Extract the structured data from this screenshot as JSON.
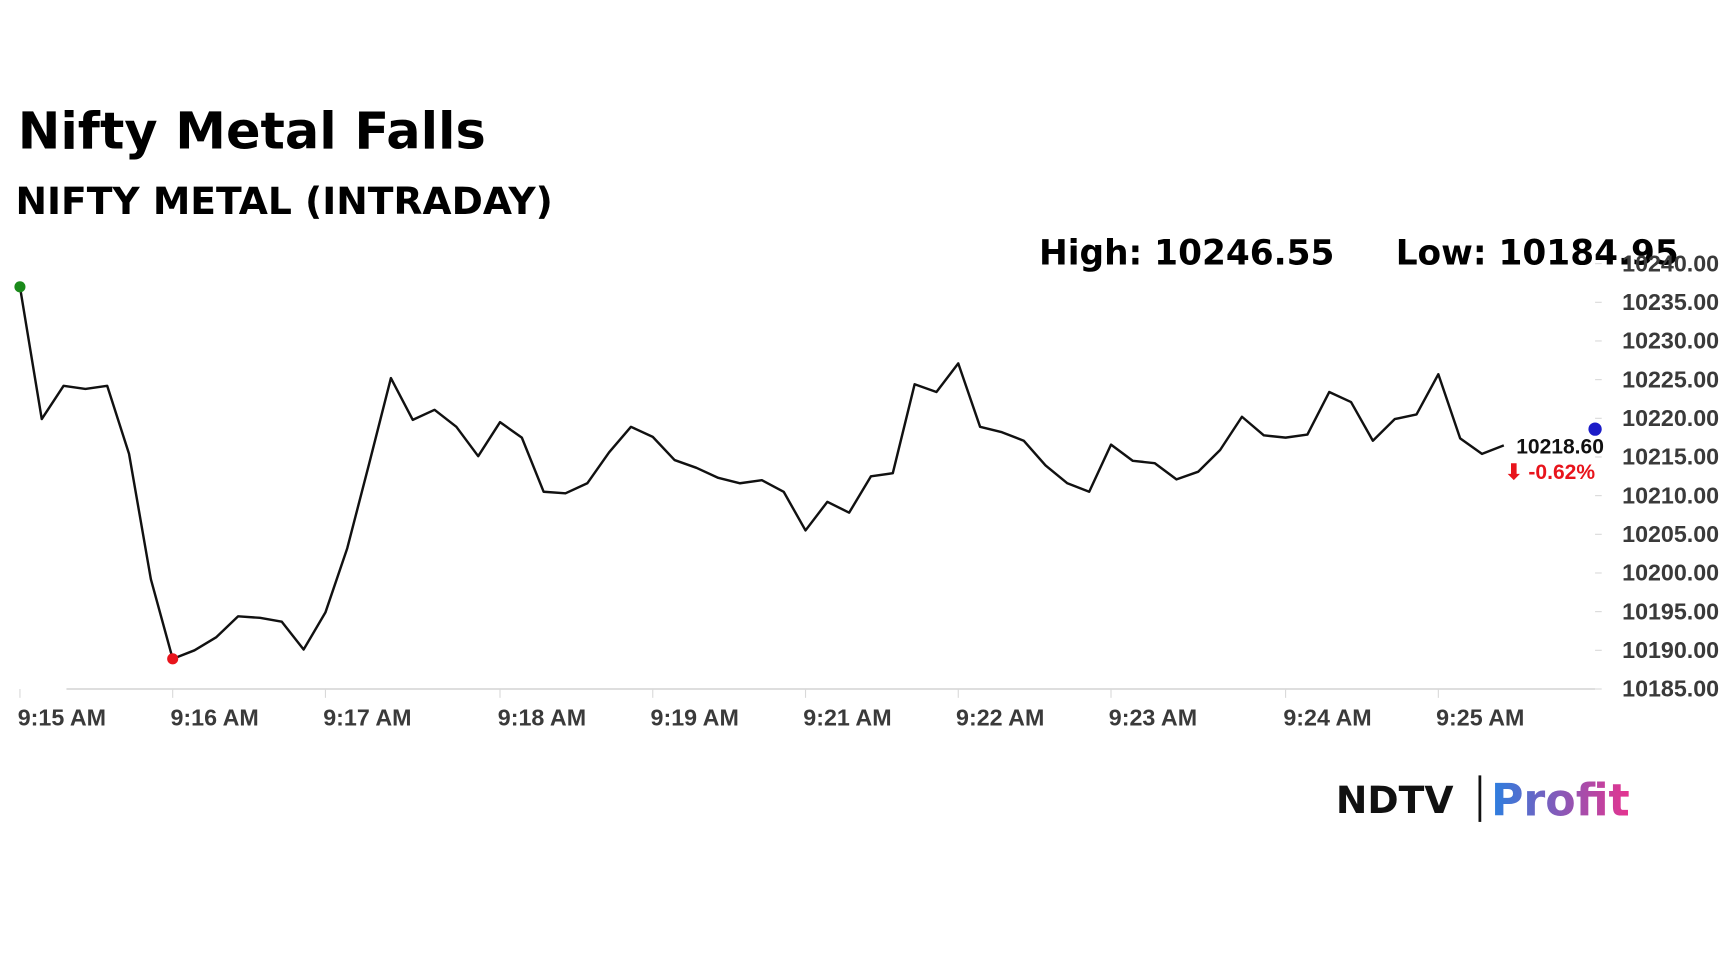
{
  "chart_data": {
    "type": "line",
    "title": "Nifty Metal Falls",
    "subtitle": "NIFTY METAL (INTRADAY)",
    "high_label": "High: 10246.55",
    "low_label": "Low: 10184.95",
    "categories": [
      "9:15 AM",
      null,
      null,
      null,
      null,
      null,
      null,
      "9:16 AM",
      null,
      null,
      null,
      null,
      null,
      null,
      "9:17 AM",
      null,
      null,
      null,
      null,
      null,
      null,
      null,
      "9:18 AM",
      null,
      null,
      null,
      null,
      null,
      null,
      "9:19 AM",
      null,
      null,
      null,
      null,
      null,
      null,
      "9:21 AM",
      null,
      null,
      null,
      null,
      null,
      null,
      "9:22 AM",
      null,
      null,
      null,
      null,
      null,
      null,
      "9:23 AM",
      null,
      null,
      null,
      null,
      null,
      null,
      null,
      "9:24 AM",
      null,
      null,
      null,
      null,
      null,
      null,
      "9:25 AM",
      null,
      null,
      null
    ],
    "series": [
      {
        "name": "NIFTY METAL",
        "color": "#111111",
        "values": [
          10237.0,
          10219.9,
          10224.2,
          10223.8,
          10224.2,
          10215.4,
          10199.2,
          10188.9,
          10190.0,
          10191.7,
          10194.4,
          10194.2,
          10193.7,
          10190.1,
          10194.9,
          10203.2,
          10214.1,
          10225.2,
          10219.8,
          10221.1,
          10218.9,
          10215.1,
          10219.5,
          10217.5,
          10210.5,
          10210.3,
          10211.6,
          10215.6,
          10218.9,
          10217.6,
          10214.6,
          10213.6,
          10212.3,
          10211.6,
          10212.0,
          10210.5,
          10205.5,
          10209.2,
          10207.8,
          10212.5,
          10212.9,
          10224.4,
          10223.4,
          10227.1,
          10218.9,
          10218.2,
          10217.1,
          10213.9,
          10211.6,
          10210.5,
          10216.6,
          10214.5,
          10214.2,
          10212.1,
          10213.1,
          10215.9,
          10220.2,
          10217.8,
          10217.5,
          10217.9,
          10223.4,
          10222.1,
          10217.1,
          10219.9,
          10220.5,
          10225.7,
          10217.4,
          10215.4,
          10216.5
        ]
      }
    ],
    "start_color": "#1a8a1a",
    "low_color": "#e8141c",
    "last": {
      "value": 10218.6,
      "label": "10218.60",
      "color": "#1c1cc8"
    },
    "change_label": "⬇ -0.62%",
    "change_color": "#e8141c",
    "ylim": [
      10185,
      10240
    ],
    "yticks": [
      {
        "value": 10185,
        "label": "10185.00"
      },
      {
        "value": 10190,
        "label": "10190.00"
      },
      {
        "value": 10195,
        "label": "10195.00"
      },
      {
        "value": 10200,
        "label": "10200.00"
      },
      {
        "value": 10205,
        "label": "10205.00"
      },
      {
        "value": 10210,
        "label": "10210.00"
      },
      {
        "value": 10215,
        "label": "10215.00"
      },
      {
        "value": 10220,
        "label": "10220.00"
      },
      {
        "value": 10225,
        "label": "10225.00"
      },
      {
        "value": 10230,
        "label": "10230.00"
      },
      {
        "value": 10235,
        "label": "10235.00"
      },
      {
        "value": 10240,
        "label": "10240.00"
      }
    ],
    "logo": {
      "brand": "NDTV",
      "product": "Profit"
    }
  }
}
